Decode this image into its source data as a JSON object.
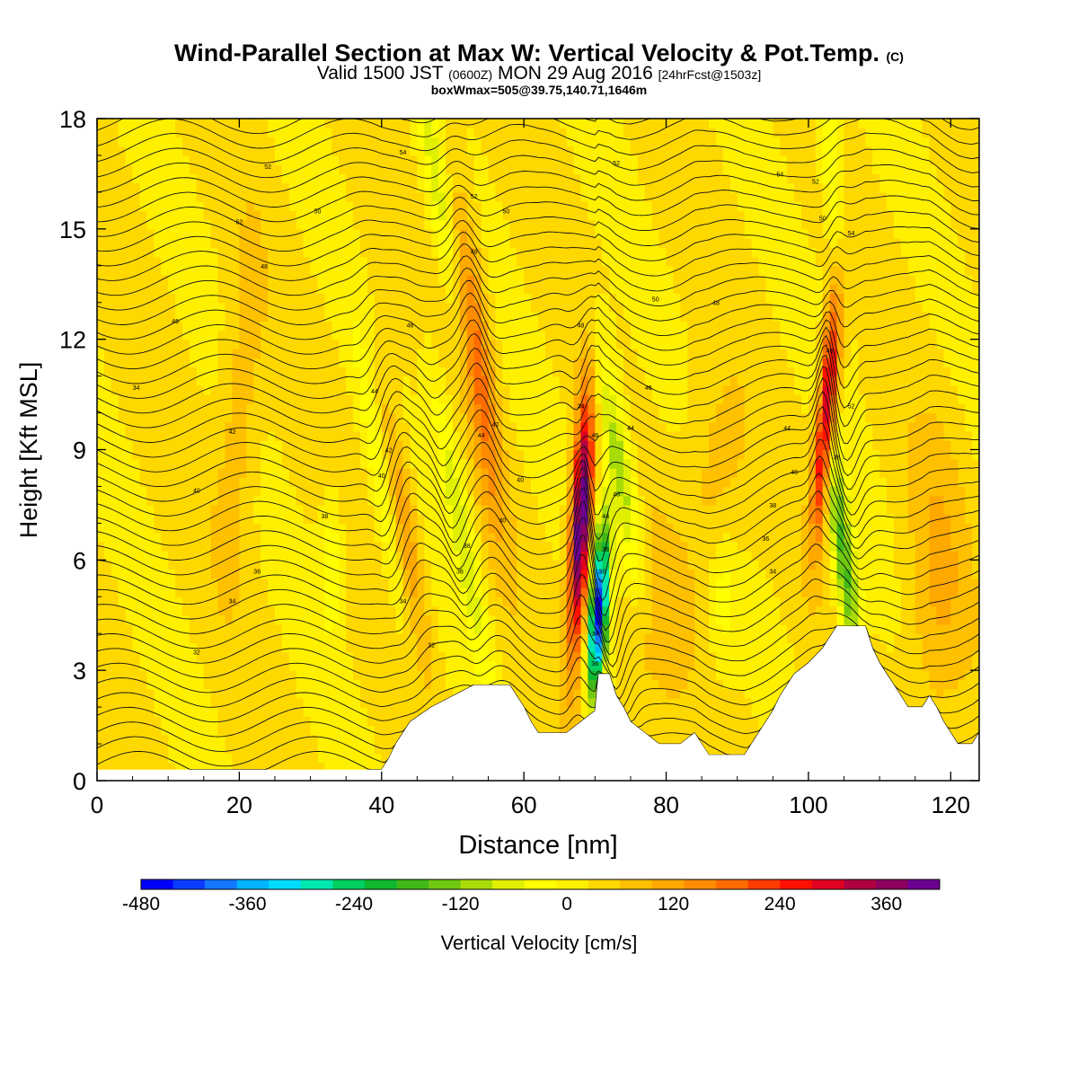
{
  "header": {
    "title_main": "Wind-Parallel Section at Max W: Vertical Velocity & Pot.Temp.",
    "title_copyright": "(C)",
    "valid_a": "Valid 1500 JST",
    "valid_b": "(0600Z)",
    "valid_c": "MON 29 Aug 2016",
    "valid_d": "[24hrFcst@1503z]",
    "boxline": "boxWmax=505@39.75,140.71,1646m"
  },
  "chart_data": {
    "type": "heatmap",
    "title": "Wind-Parallel Section at Max W: Vertical Velocity & Pot.Temp.",
    "xlabel": "Distance [nm]",
    "ylabel": "Height [Kft MSL]",
    "xlim": [
      0,
      124
    ],
    "ylim": [
      0,
      18
    ],
    "xticks": [
      0,
      20,
      40,
      60,
      80,
      100,
      120
    ],
    "yticks": [
      0,
      3,
      6,
      9,
      12,
      15,
      18
    ],
    "colorbar": {
      "label": "Vertical Velocity [cm/s]",
      "tick_labels": [
        "-480",
        "-360",
        "-240",
        "-120",
        "0",
        "120",
        "240",
        "360"
      ],
      "tick_values": [
        -480,
        -360,
        -240,
        -120,
        0,
        120,
        240,
        360
      ],
      "range": [
        -480,
        420
      ],
      "colors": [
        "#0000ff",
        "#0a3cff",
        "#1478ff",
        "#00b4ff",
        "#00dcff",
        "#00e8b0",
        "#00d060",
        "#10b830",
        "#40b818",
        "#70c810",
        "#a8dc08",
        "#e0f000",
        "#ffff00",
        "#fff000",
        "#ffd800",
        "#ffc000",
        "#ffa800",
        "#ff8c00",
        "#ff6c00",
        "#ff3c00",
        "#ff1000",
        "#e00020",
        "#b00040",
        "#8c0060",
        "#6c0090"
      ]
    },
    "terrain_kft": [
      [
        0,
        0.3
      ],
      [
        40,
        0.3
      ],
      [
        41,
        0.6
      ],
      [
        42,
        1
      ],
      [
        43,
        1.3
      ],
      [
        44,
        1.6
      ],
      [
        47,
        2
      ],
      [
        50,
        2.3
      ],
      [
        53,
        2.6
      ],
      [
        56,
        2.6
      ],
      [
        58,
        2.6
      ],
      [
        59,
        2.3
      ],
      [
        60,
        2
      ],
      [
        61,
        1.6
      ],
      [
        62,
        1.3
      ],
      [
        64,
        1.3
      ],
      [
        66,
        1.3
      ],
      [
        68,
        1.6
      ],
      [
        70,
        1.9
      ],
      [
        70.5,
        2.9
      ],
      [
        72,
        2.9
      ],
      [
        73,
        2.3
      ],
      [
        74,
        2
      ],
      [
        75,
        1.6
      ],
      [
        77,
        1.3
      ],
      [
        79,
        1
      ],
      [
        80,
        1
      ],
      [
        82,
        1
      ],
      [
        84,
        1.3
      ],
      [
        85,
        1
      ],
      [
        86,
        0.7
      ],
      [
        88,
        0.7
      ],
      [
        91,
        0.7
      ],
      [
        92,
        1
      ],
      [
        93,
        1.3
      ],
      [
        94,
        1.6
      ],
      [
        95,
        1.9
      ],
      [
        96,
        2.3
      ],
      [
        97,
        2.6
      ],
      [
        98,
        2.9
      ],
      [
        100,
        3.2
      ],
      [
        102,
        3.6
      ],
      [
        103,
        3.9
      ],
      [
        104,
        4.2
      ],
      [
        108,
        4.2
      ],
      [
        109,
        3.6
      ],
      [
        110,
        3.2
      ],
      [
        111,
        2.9
      ],
      [
        112,
        2.6
      ],
      [
        113,
        2.3
      ],
      [
        114,
        2
      ],
      [
        116,
        2
      ],
      [
        117,
        2.3
      ],
      [
        118,
        2
      ],
      [
        119,
        1.6
      ],
      [
        120,
        1.3
      ],
      [
        121,
        1
      ],
      [
        123,
        1
      ],
      [
        124,
        1.3
      ]
    ],
    "theta_contour_labels": [
      {
        "x": 5.5,
        "y": 10.7,
        "text": "34"
      },
      {
        "x": 11,
        "y": 12.5,
        "text": "46"
      },
      {
        "x": 14,
        "y": 7.9,
        "text": "40"
      },
      {
        "x": 14,
        "y": 3.5,
        "text": "32"
      },
      {
        "x": 19,
        "y": 9.5,
        "text": "42"
      },
      {
        "x": 20,
        "y": 15.2,
        "text": "52"
      },
      {
        "x": 19,
        "y": 4.9,
        "text": "34"
      },
      {
        "x": 22.5,
        "y": 5.7,
        "text": "36"
      },
      {
        "x": 23.5,
        "y": 14,
        "text": "48"
      },
      {
        "x": 24,
        "y": 16.7,
        "text": "52"
      },
      {
        "x": 31,
        "y": 15.5,
        "text": "50"
      },
      {
        "x": 32,
        "y": 7.2,
        "text": "38"
      },
      {
        "x": 39,
        "y": 10.6,
        "text": "44"
      },
      {
        "x": 40,
        "y": 8.3,
        "text": "40"
      },
      {
        "x": 41,
        "y": 9.0,
        "text": "42"
      },
      {
        "x": 43,
        "y": 4.9,
        "text": "34"
      },
      {
        "x": 44,
        "y": 12.4,
        "text": "46"
      },
      {
        "x": 43,
        "y": 17.1,
        "text": "54"
      },
      {
        "x": 47,
        "y": 3.7,
        "text": "32"
      },
      {
        "x": 51,
        "y": 5.7,
        "text": "36"
      },
      {
        "x": 52,
        "y": 6.4,
        "text": "38"
      },
      {
        "x": 53,
        "y": 15.9,
        "text": "52"
      },
      {
        "x": 53,
        "y": 14.4,
        "text": "48"
      },
      {
        "x": 54,
        "y": 9.4,
        "text": "44"
      },
      {
        "x": 56,
        "y": 9.7,
        "text": "42"
      },
      {
        "x": 57,
        "y": 7.1,
        "text": "40"
      },
      {
        "x": 57.5,
        "y": 15.5,
        "text": "50"
      },
      {
        "x": 59.5,
        "y": 8.2,
        "text": "40"
      },
      {
        "x": 68,
        "y": 12.4,
        "text": "48"
      },
      {
        "x": 68,
        "y": 10.2,
        "text": "34"
      },
      {
        "x": 70,
        "y": 9.4,
        "text": "46"
      },
      {
        "x": 73,
        "y": 7.8,
        "text": "40"
      },
      {
        "x": 71.5,
        "y": 7.2,
        "text": "44"
      },
      {
        "x": 71.5,
        "y": 6.3,
        "text": "36"
      },
      {
        "x": 71,
        "y": 5.7,
        "text": "38"
      },
      {
        "x": 70,
        "y": 4.0,
        "text": "34"
      },
      {
        "x": 70,
        "y": 3.2,
        "text": "36"
      },
      {
        "x": 73,
        "y": 16.8,
        "text": "52"
      },
      {
        "x": 75,
        "y": 9.6,
        "text": "44"
      },
      {
        "x": 77.5,
        "y": 10.7,
        "text": "46"
      },
      {
        "x": 78.5,
        "y": 13.1,
        "text": "50"
      },
      {
        "x": 87,
        "y": 13.0,
        "text": "48"
      },
      {
        "x": 96,
        "y": 16.5,
        "text": "54"
      },
      {
        "x": 97,
        "y": 9.6,
        "text": "44"
      },
      {
        "x": 98,
        "y": 8.4,
        "text": "40"
      },
      {
        "x": 95,
        "y": 7.5,
        "text": "38"
      },
      {
        "x": 94,
        "y": 6.6,
        "text": "36"
      },
      {
        "x": 95,
        "y": 5.7,
        "text": "34"
      },
      {
        "x": 101,
        "y": 16.3,
        "text": "52"
      },
      {
        "x": 102,
        "y": 15.3,
        "text": "50"
      },
      {
        "x": 103,
        "y": 11.7,
        "text": "46"
      },
      {
        "x": 104,
        "y": 8.8,
        "text": "38"
      },
      {
        "x": 106,
        "y": 10.2,
        "text": "52"
      },
      {
        "x": 106,
        "y": 14.9,
        "text": "54"
      }
    ]
  }
}
